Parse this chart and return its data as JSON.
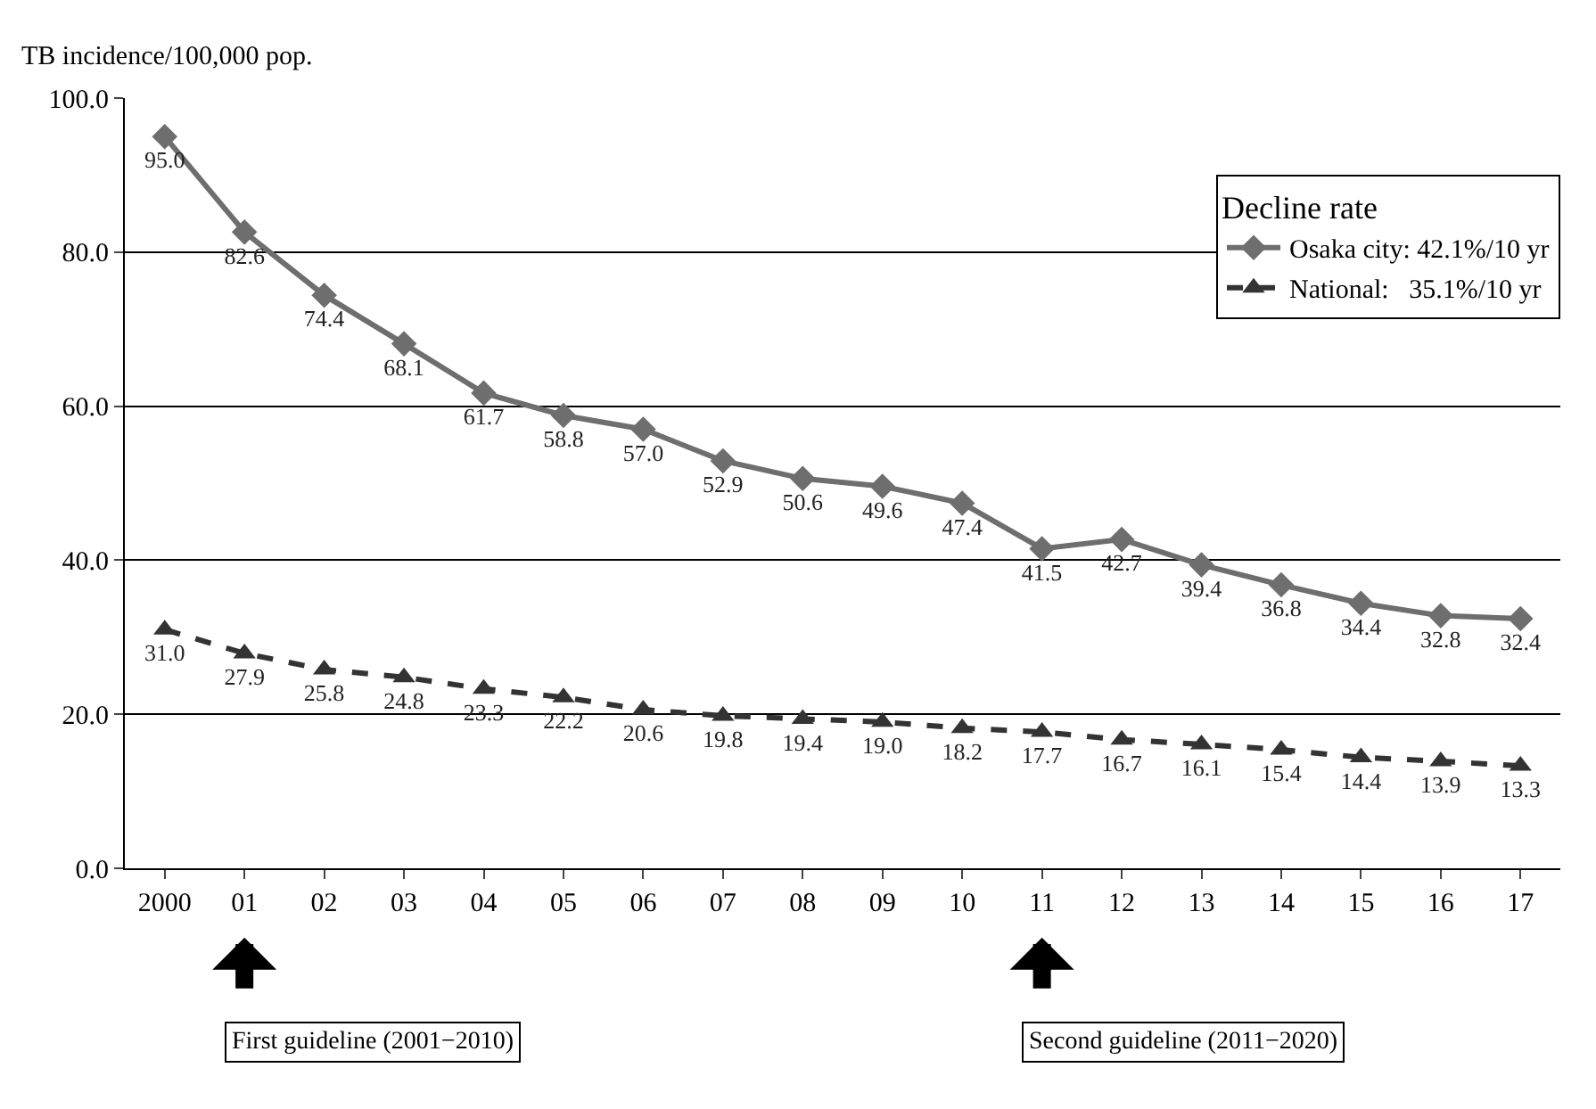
{
  "chart_data": {
    "type": "line",
    "ylabel": "TB incidence/100,000 pop.",
    "legend_title": "Decline rate",
    "categories": [
      "2000",
      "01",
      "02",
      "03",
      "04",
      "05",
      "06",
      "07",
      "08",
      "09",
      "10",
      "11",
      "12",
      "13",
      "14",
      "15",
      "16",
      "17"
    ],
    "series": [
      {
        "name": "Osaka city: 42.1%/10 yr",
        "color": "#6e6e6e",
        "marker": "diamond",
        "line_style": "solid",
        "values": [
          95.0,
          82.6,
          74.4,
          68.1,
          61.7,
          58.8,
          57.0,
          52.9,
          50.6,
          49.6,
          47.4,
          41.5,
          42.7,
          39.4,
          36.8,
          34.4,
          32.8,
          32.4
        ],
        "value_labels": [
          "95.0",
          "82.6",
          "74.4",
          "68.1",
          "61.7",
          "58.8",
          "57.0",
          "52.9",
          "50.6",
          "49.6",
          "47.4",
          "41.5",
          "42.7",
          "39.4",
          "36.8",
          "34.4",
          "32.8",
          "32.4"
        ]
      },
      {
        "name": "National:   35.1%/10 yr",
        "color": "#333333",
        "marker": "triangle",
        "line_style": "dashed",
        "values": [
          31.0,
          27.9,
          25.8,
          24.8,
          23.3,
          22.2,
          20.6,
          19.8,
          19.4,
          19.0,
          18.2,
          17.7,
          16.7,
          16.1,
          15.4,
          14.4,
          13.9,
          13.3
        ],
        "value_labels": [
          "31.0",
          "27.9",
          "25.8",
          "24.8",
          "23.3",
          "22.2",
          "20.6",
          "19.8",
          "19.4",
          "19.0",
          "18.2",
          "17.7",
          "16.7",
          "16.1",
          "15.4",
          "14.4",
          "13.9",
          "13.3"
        ]
      }
    ],
    "ylim": [
      0,
      100
    ],
    "yticks": [
      {
        "value": 0,
        "label": "0.0"
      },
      {
        "value": 20,
        "label": "20.0"
      },
      {
        "value": 40,
        "label": "40.0"
      },
      {
        "value": 60,
        "label": "60.0"
      },
      {
        "value": 80,
        "label": "80.0"
      },
      {
        "value": 100,
        "label": "100.0"
      }
    ],
    "grid": "y",
    "legend": "top right",
    "annotations": [
      "First guideline (2001−2010)",
      "Second guideline (2011−2020)"
    ]
  }
}
